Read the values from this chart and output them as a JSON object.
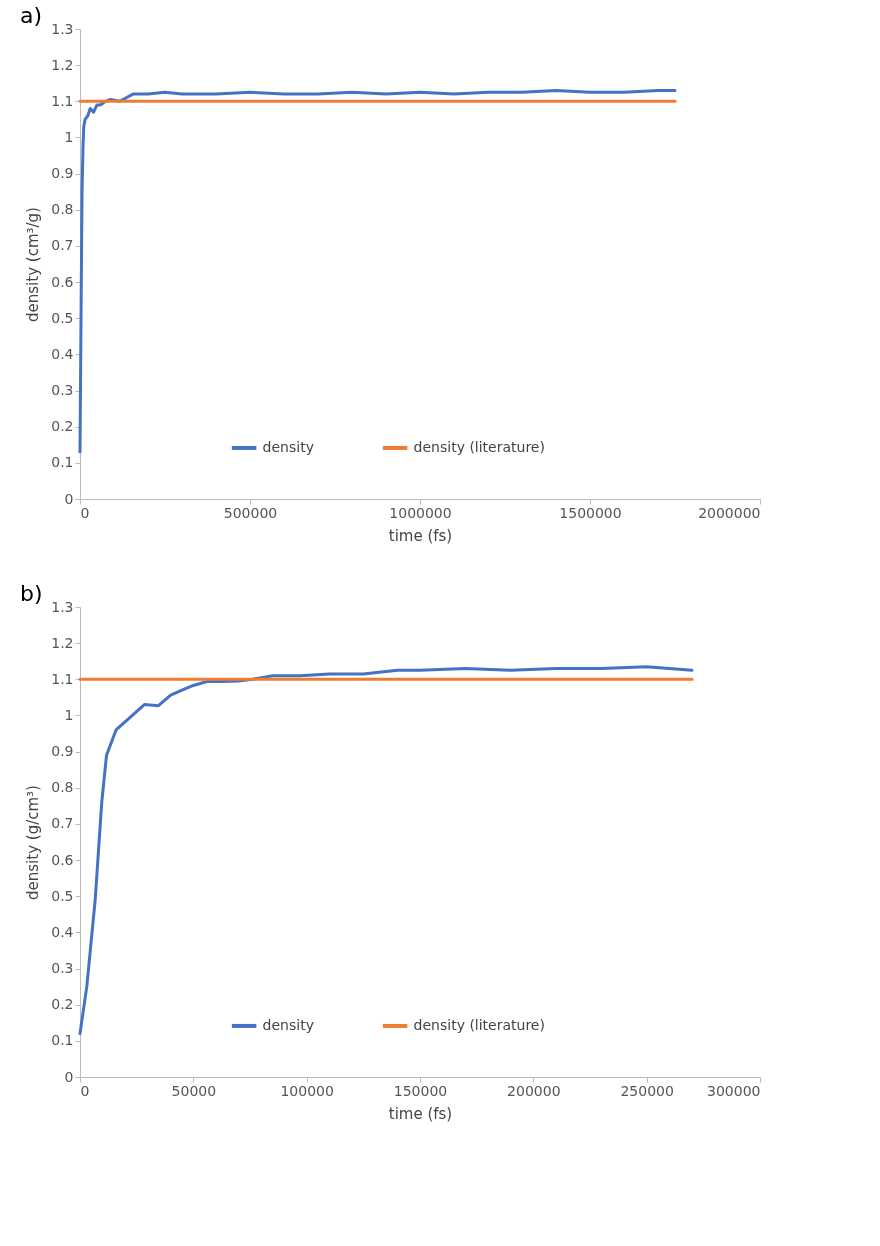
{
  "chart_data": [
    {
      "type": "line",
      "title": "a)",
      "xlabel": "time (fs)",
      "ylabel": "density (cm³/g)",
      "xlim": [
        0,
        2000000
      ],
      "xticks": [
        0,
        500000,
        1000000,
        1500000,
        2000000
      ],
      "ylim": [
        0,
        1.3
      ],
      "yticks": [
        0,
        0.1,
        0.2,
        0.3,
        0.4,
        0.5,
        0.6,
        0.7,
        0.8,
        0.9,
        1,
        1.1,
        1.2,
        1.3
      ],
      "grid": false,
      "legend": "bottom",
      "line_style": "solid",
      "series": [
        {
          "name": "density",
          "color": "#4472c4",
          "x": [
            0,
            3000,
            6000,
            9000,
            11000,
            15000,
            23000,
            30000,
            40000,
            50000,
            60000,
            75000,
            90000,
            117000,
            156000,
            200000,
            250000,
            300000,
            400000,
            500000,
            600000,
            700000,
            800000,
            900000,
            1000000,
            1100000,
            1200000,
            1300000,
            1400000,
            1500000,
            1600000,
            1700000,
            1750000
          ],
          "values": [
            0.13,
            0.5,
            0.85,
            0.98,
            1.03,
            1.05,
            1.06,
            1.08,
            1.07,
            1.09,
            1.09,
            1.1,
            1.105,
            1.1,
            1.12,
            1.12,
            1.125,
            1.12,
            1.12,
            1.125,
            1.12,
            1.12,
            1.125,
            1.12,
            1.125,
            1.12,
            1.125,
            1.125,
            1.13,
            1.125,
            1.125,
            1.13,
            1.13
          ]
        },
        {
          "name": "density (literature)",
          "color": "#ed7d31",
          "x": [
            0,
            1750000
          ],
          "values": [
            1.1,
            1.1
          ]
        }
      ]
    },
    {
      "type": "line",
      "title": "b)",
      "xlabel": "time (fs)",
      "ylabel": "density (g/cm³)",
      "xlim": [
        0,
        300000
      ],
      "xticks": [
        0,
        50000,
        100000,
        150000,
        200000,
        250000,
        300000
      ],
      "ylim": [
        0,
        1.3
      ],
      "yticks": [
        0,
        0.1,
        0.2,
        0.3,
        0.4,
        0.5,
        0.6,
        0.7,
        0.8,
        0.9,
        1,
        1.1,
        1.2,
        1.3
      ],
      "grid": false,
      "legend": "bottom",
      "line_style": "solid",
      "series": [
        {
          "name": "density",
          "color": "#4472c4",
          "x": [
            0,
            3000,
            6700,
            9600,
            11700,
            15900,
            22100,
            28400,
            34600,
            40000,
            45000,
            50000,
            56000,
            62600,
            70000,
            76000,
            85000,
            97000,
            110000,
            125000,
            140000,
            150000,
            170000,
            190000,
            210000,
            230000,
            250000,
            260000,
            270000
          ],
          "values": [
            0.12,
            0.25,
            0.49,
            0.76,
            0.89,
            0.96,
            0.995,
            1.03,
            1.027,
            1.056,
            1.07,
            1.083,
            1.094,
            1.094,
            1.095,
            1.1,
            1.11,
            1.11,
            1.115,
            1.115,
            1.125,
            1.125,
            1.13,
            1.125,
            1.13,
            1.13,
            1.135,
            1.13,
            1.125
          ]
        },
        {
          "name": "density (literature)",
          "color": "#ed7d31",
          "x": [
            0,
            270000
          ],
          "values": [
            1.1,
            1.1
          ]
        }
      ]
    }
  ]
}
